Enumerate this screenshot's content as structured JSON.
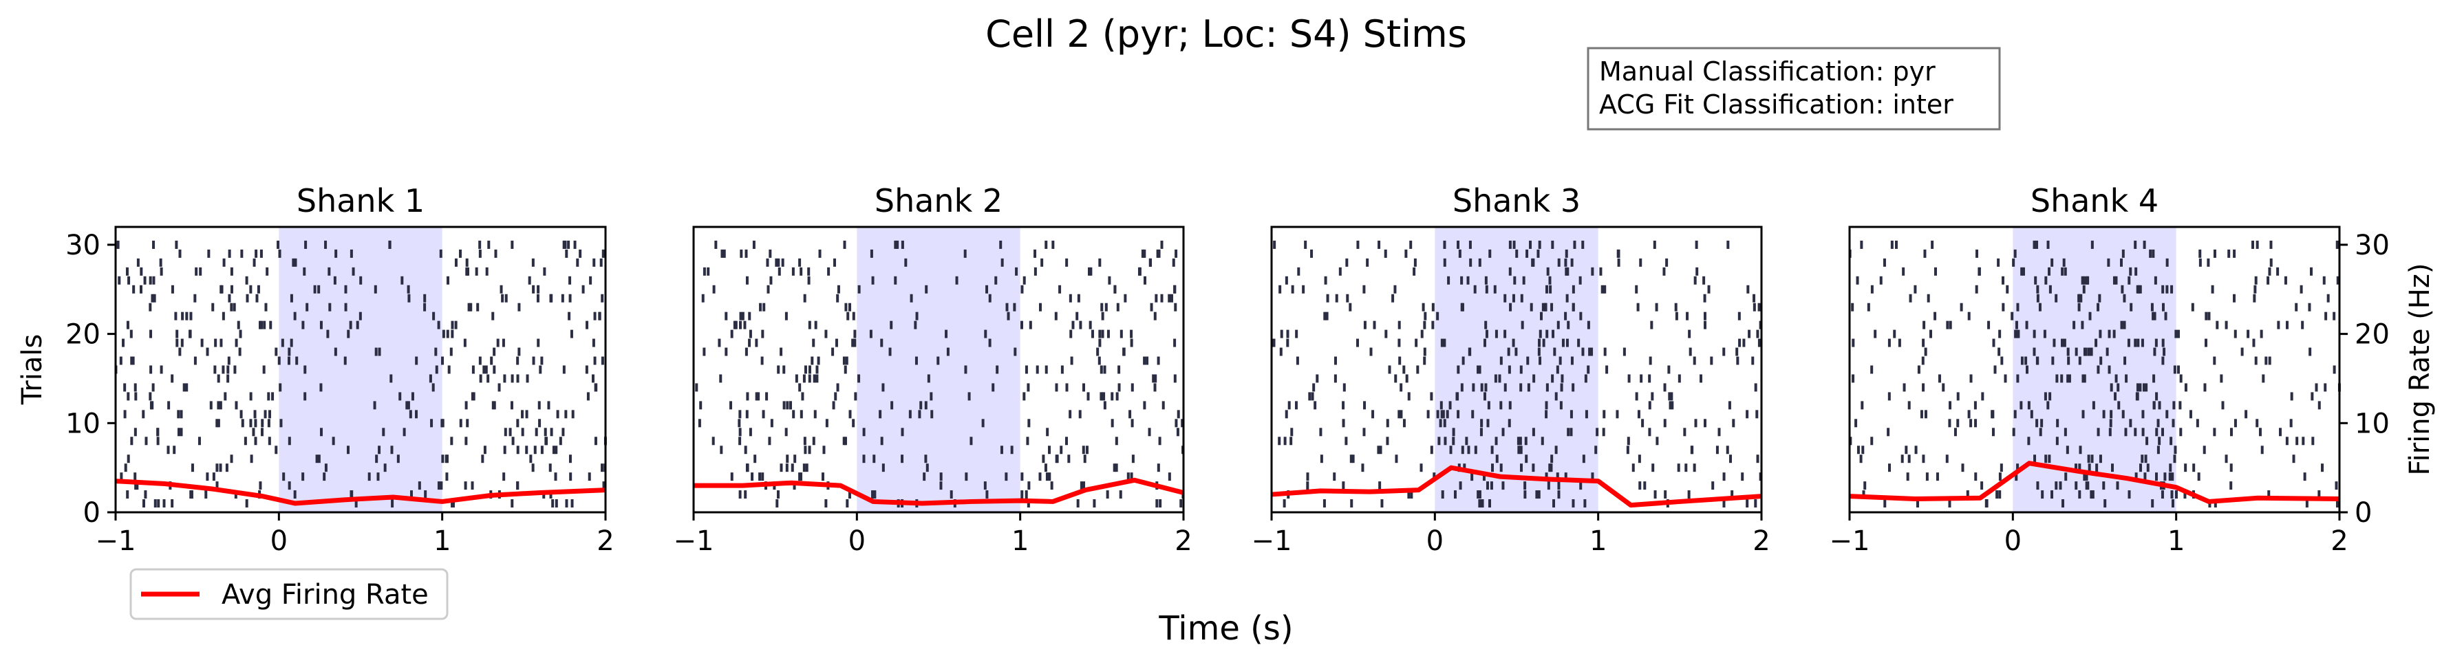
{
  "figure": {
    "title": "Cell 2 (pyr; Loc: S4) Stims",
    "xlabel": "Time (s)",
    "ylabel_left": "Trials",
    "ylabel_right": "Firing Rate (Hz)",
    "classification_box": [
      "Manual Classification: pyr",
      "ACG Fit Classification: inter"
    ],
    "legend": {
      "label": "Avg Firing Rate",
      "color": "#ff0000"
    },
    "raster_color": "#2b2d42",
    "stim_color": "#c8c8ff"
  },
  "chart_data": [
    {
      "type": "line",
      "title": "Shank 1",
      "xlim": [
        -1,
        2
      ],
      "ylim": [
        0,
        32
      ],
      "x_ticks": [
        -1,
        0,
        1,
        2
      ],
      "y_ticks": [
        0,
        10,
        20,
        30
      ],
      "stim_window": [
        0,
        1
      ],
      "raster": {
        "trials": 30,
        "spikes_per_trial": 16,
        "stim_rate_factor": 0.65
      },
      "series": [
        {
          "name": "Avg Firing Rate",
          "x": [
            -1.0,
            -0.7,
            -0.4,
            -0.1,
            0.1,
            0.4,
            0.7,
            1.0,
            1.3,
            1.6,
            2.0
          ],
          "y": [
            3.5,
            3.2,
            2.6,
            1.8,
            1.0,
            1.4,
            1.7,
            1.2,
            1.9,
            2.2,
            2.5
          ]
        }
      ]
    },
    {
      "type": "line",
      "title": "Shank 2",
      "xlim": [
        -1,
        2
      ],
      "ylim": [
        0,
        32
      ],
      "x_ticks": [
        -1,
        0,
        1,
        2
      ],
      "y_ticks": [
        0,
        10,
        20,
        30
      ],
      "stim_window": [
        0,
        1
      ],
      "raster": {
        "trials": 30,
        "spikes_per_trial": 15,
        "stim_rate_factor": 0.55
      },
      "series": [
        {
          "name": "Avg Firing Rate",
          "x": [
            -1.0,
            -0.7,
            -0.4,
            -0.1,
            0.1,
            0.4,
            0.7,
            1.0,
            1.2,
            1.4,
            1.7,
            2.0
          ],
          "y": [
            3.0,
            3.0,
            3.3,
            3.0,
            1.2,
            1.0,
            1.2,
            1.3,
            1.2,
            2.5,
            3.6,
            2.2
          ]
        }
      ]
    },
    {
      "type": "line",
      "title": "Shank 3",
      "xlim": [
        -1,
        2
      ],
      "ylim": [
        0,
        32
      ],
      "x_ticks": [
        -1,
        0,
        1,
        2
      ],
      "y_ticks": [
        0,
        10,
        20,
        30
      ],
      "stim_window": [
        0,
        1
      ],
      "raster": {
        "trials": 30,
        "spikes_per_trial": 11,
        "stim_rate_factor": 1.9
      },
      "series": [
        {
          "name": "Avg Firing Rate",
          "x": [
            -1.0,
            -0.7,
            -0.4,
            -0.1,
            0.1,
            0.4,
            0.7,
            1.0,
            1.2,
            1.5,
            2.0
          ],
          "y": [
            2.0,
            2.4,
            2.3,
            2.5,
            5.0,
            4.0,
            3.7,
            3.5,
            0.8,
            1.2,
            1.8
          ]
        }
      ]
    },
    {
      "type": "line",
      "title": "Shank 4",
      "xlim": [
        -1,
        2
      ],
      "ylim": [
        0,
        32
      ],
      "x_ticks": [
        -1,
        0,
        1,
        2
      ],
      "y_ticks": [
        0,
        10,
        20,
        30
      ],
      "stim_window": [
        0,
        1
      ],
      "raster": {
        "trials": 30,
        "spikes_per_trial": 10,
        "stim_rate_factor": 2.2
      },
      "series": [
        {
          "name": "Avg Firing Rate",
          "x": [
            -1.0,
            -0.6,
            -0.2,
            0.1,
            0.4,
            0.7,
            1.0,
            1.2,
            1.5,
            2.0
          ],
          "y": [
            1.8,
            1.5,
            1.6,
            5.5,
            4.6,
            3.8,
            2.8,
            1.2,
            1.6,
            1.5
          ]
        }
      ]
    }
  ]
}
